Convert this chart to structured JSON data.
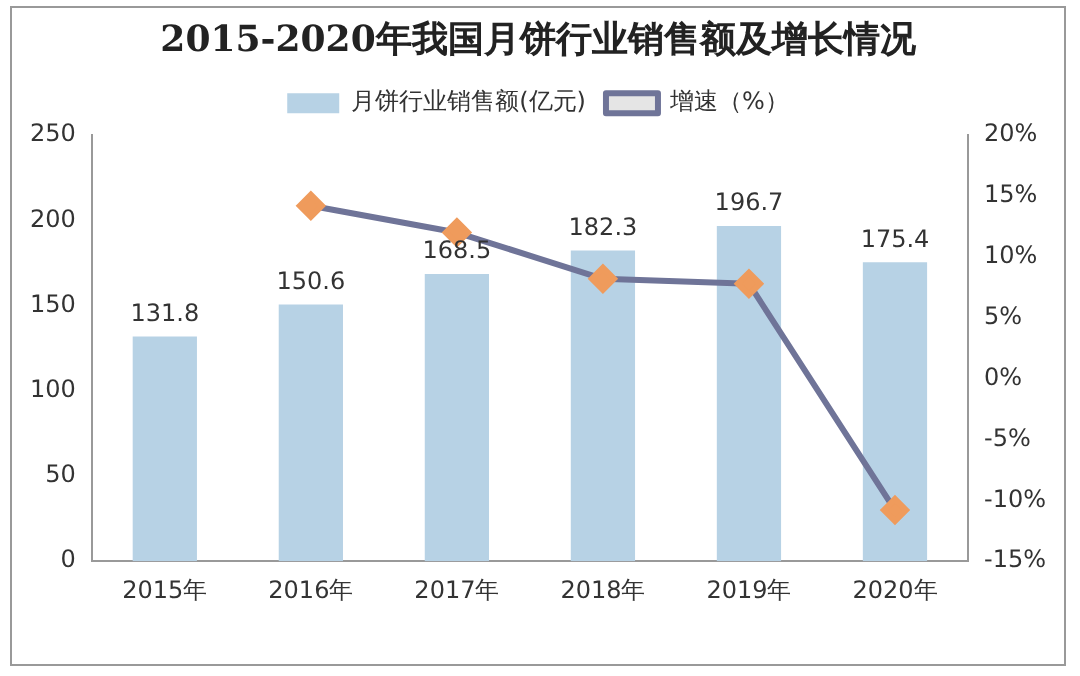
{
  "chart_data": {
    "type": "bar",
    "title": "2015-2020年我国月饼行业销售额及增长情况",
    "categories": [
      "2015年",
      "2016年",
      "2017年",
      "2018年",
      "2019年",
      "2020年"
    ],
    "series": [
      {
        "name": "月饼行业销售额(亿元)",
        "color": "#b7d2e5",
        "values": [
          131.8,
          150.6,
          168.5,
          182.3,
          196.7,
          175.4
        ],
        "data_labels": true
      },
      {
        "name": "增速（%）",
        "type": "line",
        "axis": "y2",
        "color": "#6f7498",
        "marker": "diamond",
        "values": [
          null,
          14.2,
          12.0,
          8.2,
          7.8,
          -10.8
        ]
      }
    ],
    "ylim": [
      0,
      250
    ],
    "yticks": [
      0,
      50,
      100,
      150,
      200,
      250
    ],
    "y2lim": [
      -15,
      20
    ],
    "y2ticks": [
      {
        "value": -15,
        "label": "-15%"
      },
      {
        "value": -10,
        "label": "-10%"
      },
      {
        "value": -5,
        "label": "-5%"
      },
      {
        "value": 0,
        "label": "0%"
      },
      {
        "value": 5,
        "label": "5%"
      },
      {
        "value": 10,
        "label": "10%"
      },
      {
        "value": 15,
        "label": "15%"
      },
      {
        "value": 20,
        "label": "20%"
      }
    ],
    "grid": false,
    "legend": "top"
  }
}
